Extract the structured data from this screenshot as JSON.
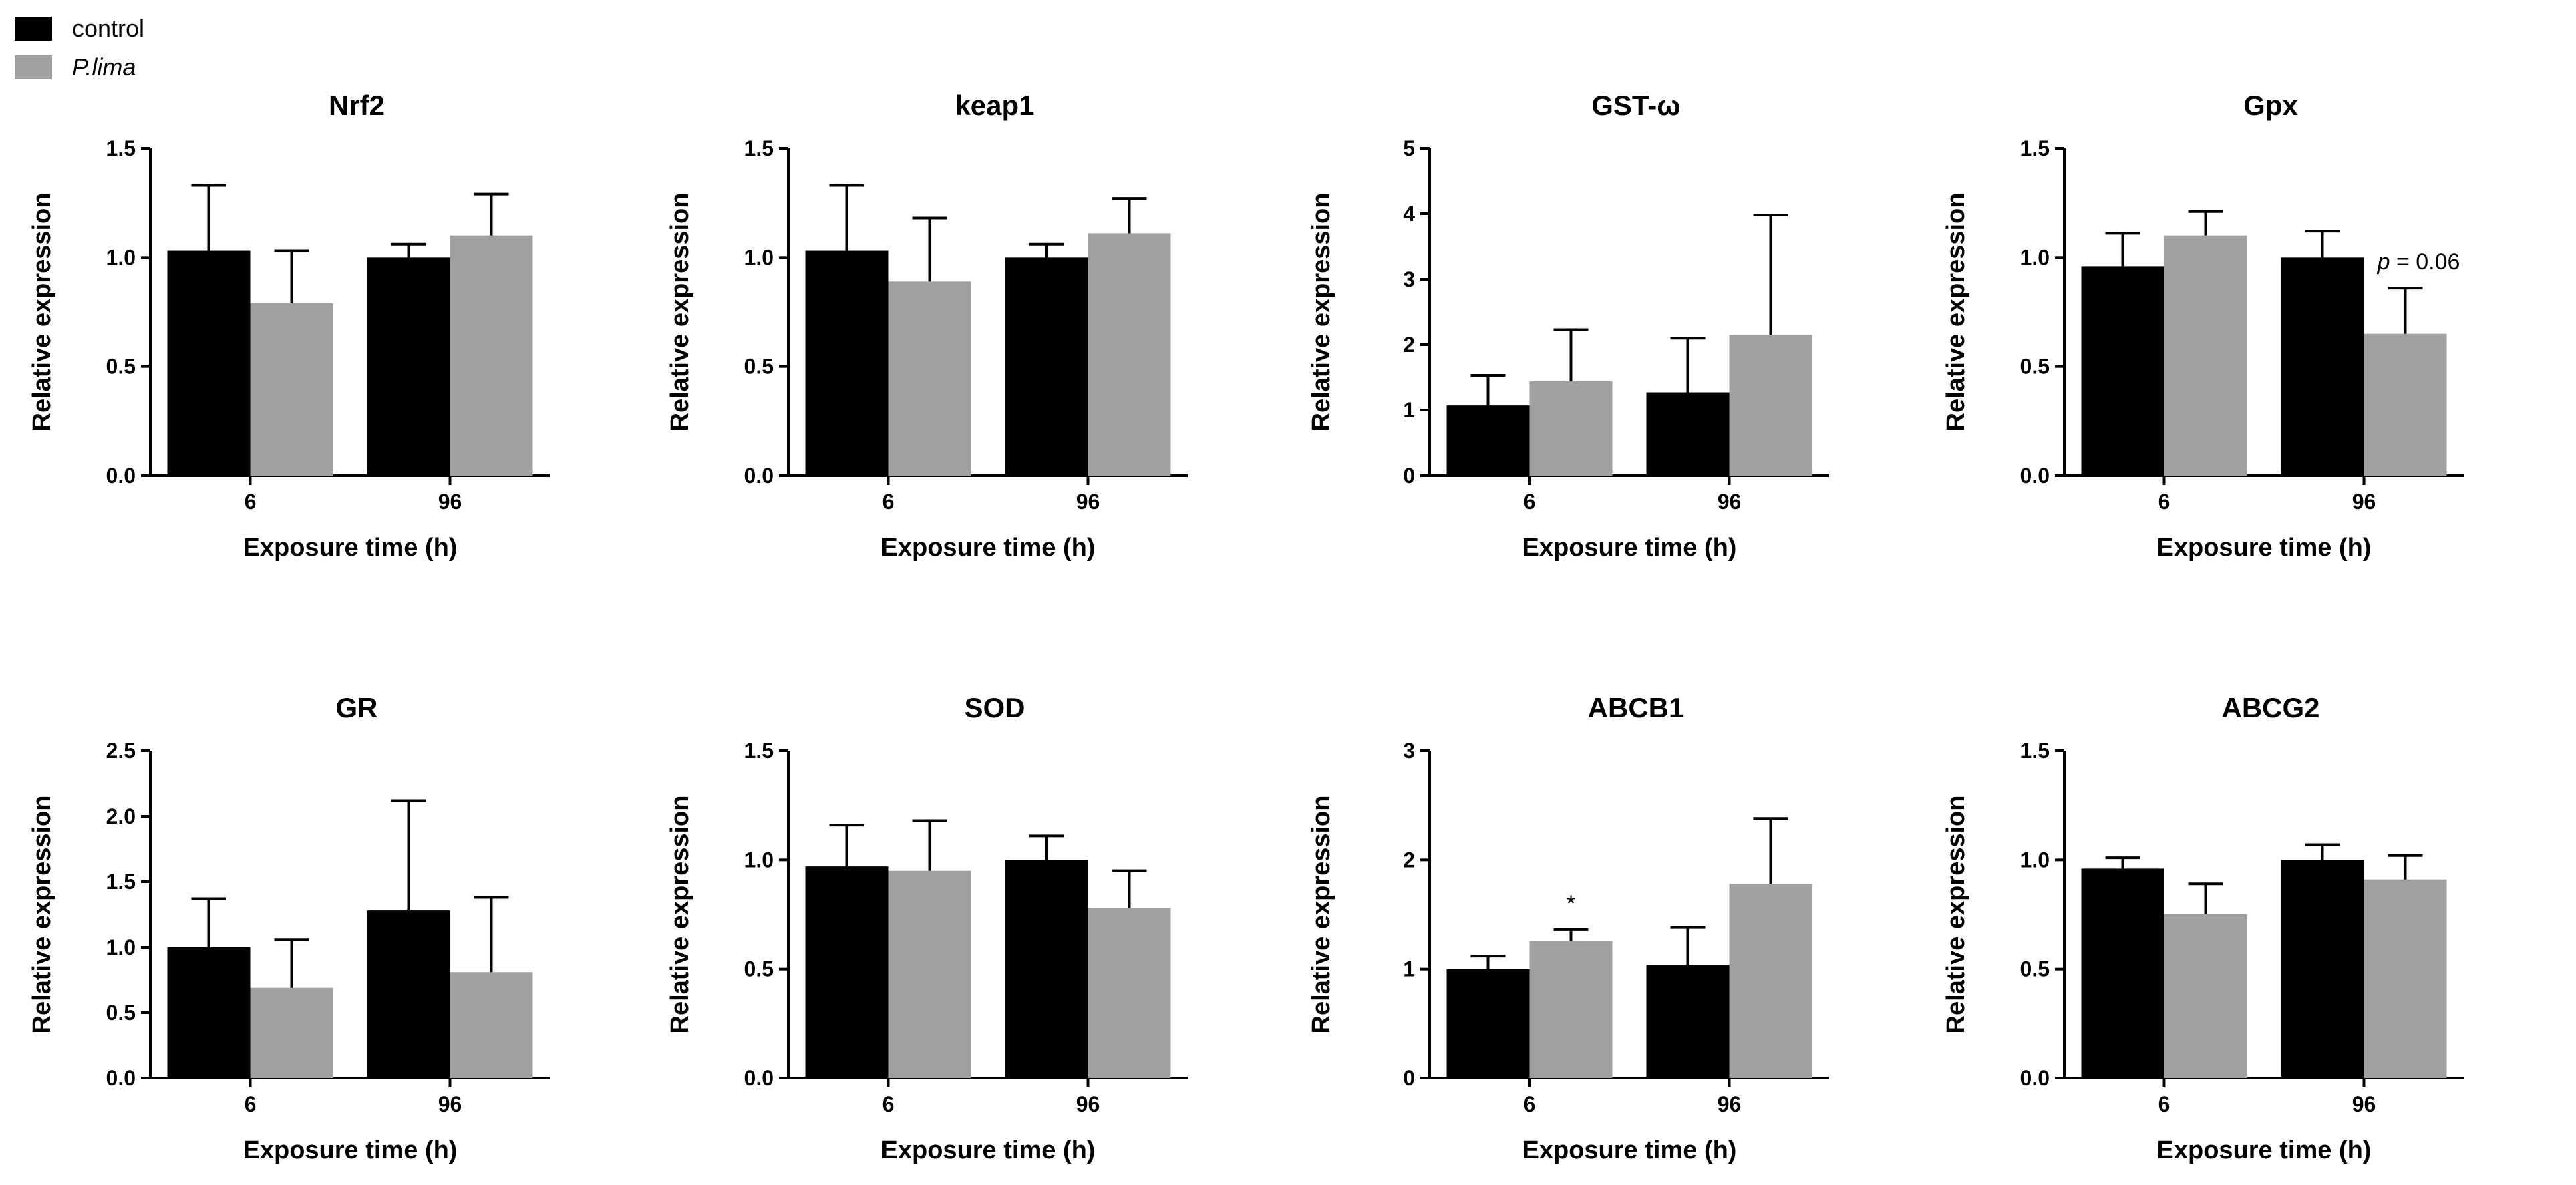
{
  "colors": {
    "control": "#000000",
    "treated": "#a0a0a3"
  },
  "legend": {
    "items": [
      {
        "label": "control",
        "color": "#000000",
        "italic": false
      },
      {
        "label": "P.lima",
        "color": "#a0a0a3",
        "italic": true
      }
    ]
  },
  "chart_data": [
    {
      "type": "bar",
      "title": "Nrf2",
      "xlabel": "Exposure time (h)",
      "ylabel": "Relative expression",
      "categories": [
        "6",
        "96"
      ],
      "ylim": [
        0,
        1.5
      ],
      "yticks": [
        "0.0",
        "0.5",
        "1.0",
        "1.5"
      ],
      "series": [
        {
          "name": "control",
          "values": [
            1.03,
            1.0
          ],
          "errors": [
            0.3,
            0.06
          ]
        },
        {
          "name": "P.lima",
          "values": [
            0.79,
            1.1
          ],
          "errors": [
            0.24,
            0.19
          ]
        }
      ],
      "annotations": []
    },
    {
      "type": "bar",
      "title": "keap1",
      "xlabel": "Exposure time (h)",
      "ylabel": "Relative expression",
      "categories": [
        "6",
        "96"
      ],
      "ylim": [
        0,
        1.5
      ],
      "yticks": [
        "0.0",
        "0.5",
        "1.0",
        "1.5"
      ],
      "series": [
        {
          "name": "control",
          "values": [
            1.03,
            1.0
          ],
          "errors": [
            0.3,
            0.06
          ]
        },
        {
          "name": "P.lima",
          "values": [
            0.89,
            1.11
          ],
          "errors": [
            0.29,
            0.16
          ]
        }
      ],
      "annotations": []
    },
    {
      "type": "bar",
      "title": "GST-ω",
      "xlabel": "Exposure time (h)",
      "ylabel": "Relative expression",
      "categories": [
        "6",
        "96"
      ],
      "ylim": [
        0,
        5
      ],
      "yticks": [
        "0",
        "1",
        "2",
        "3",
        "4",
        "5"
      ],
      "series": [
        {
          "name": "control",
          "values": [
            1.07,
            1.27
          ],
          "errors": [
            0.46,
            0.83
          ]
        },
        {
          "name": "P.lima",
          "values": [
            1.44,
            2.15
          ],
          "errors": [
            0.79,
            1.83
          ]
        }
      ],
      "annotations": []
    },
    {
      "type": "bar",
      "title": "Gpx",
      "xlabel": "Exposure time (h)",
      "ylabel": "Relative expression",
      "categories": [
        "6",
        "96"
      ],
      "ylim": [
        0,
        1.5
      ],
      "yticks": [
        "0.0",
        "0.5",
        "1.0",
        "1.5"
      ],
      "series": [
        {
          "name": "control",
          "values": [
            0.96,
            1.0
          ],
          "errors": [
            0.15,
            0.12
          ]
        },
        {
          "name": "P.lima",
          "values": [
            1.1,
            0.65
          ],
          "errors": [
            0.11,
            0.21
          ]
        }
      ],
      "annotations": [
        {
          "prefix": "p",
          "text": " = 0.06",
          "category": 1,
          "series": 1
        }
      ]
    },
    {
      "type": "bar",
      "title": "GR",
      "xlabel": "Exposure time (h)",
      "ylabel": "Relative expression",
      "categories": [
        "6",
        "96"
      ],
      "ylim": [
        0,
        2.5
      ],
      "yticks": [
        "0.0",
        "0.5",
        "1.0",
        "1.5",
        "2.0",
        "2.5"
      ],
      "series": [
        {
          "name": "control",
          "values": [
            1.0,
            1.28
          ],
          "errors": [
            0.37,
            0.84
          ]
        },
        {
          "name": "P.lima",
          "values": [
            0.69,
            0.81
          ],
          "errors": [
            0.37,
            0.57
          ]
        }
      ],
      "annotations": []
    },
    {
      "type": "bar",
      "title": "SOD",
      "xlabel": "Exposure time (h)",
      "ylabel": "Relative expression",
      "categories": [
        "6",
        "96"
      ],
      "ylim": [
        0,
        1.5
      ],
      "yticks": [
        "0.0",
        "0.5",
        "1.0",
        "1.5"
      ],
      "series": [
        {
          "name": "control",
          "values": [
            0.97,
            1.0
          ],
          "errors": [
            0.19,
            0.11
          ]
        },
        {
          "name": "P.lima",
          "values": [
            0.95,
            0.78
          ],
          "errors": [
            0.23,
            0.17
          ]
        }
      ],
      "annotations": []
    },
    {
      "type": "bar",
      "title": "ABCB1",
      "xlabel": "Exposure time (h)",
      "ylabel": "Relative expression",
      "categories": [
        "6",
        "96"
      ],
      "ylim": [
        0,
        3
      ],
      "yticks": [
        "0",
        "1",
        "2",
        "3"
      ],
      "series": [
        {
          "name": "control",
          "values": [
            1.0,
            1.04
          ],
          "errors": [
            0.12,
            0.34
          ]
        },
        {
          "name": "P.lima",
          "values": [
            1.26,
            1.78
          ],
          "errors": [
            0.1,
            0.6
          ]
        }
      ],
      "annotations": [
        {
          "prefix": "",
          "text": "*",
          "category": 0,
          "series": 1
        }
      ]
    },
    {
      "type": "bar",
      "title": "ABCG2",
      "xlabel": "Exposure time (h)",
      "ylabel": "Relative expression",
      "categories": [
        "6",
        "96"
      ],
      "ylim": [
        0,
        1.5
      ],
      "yticks": [
        "0.0",
        "0.5",
        "1.0",
        "1.5"
      ],
      "series": [
        {
          "name": "control",
          "values": [
            0.96,
            1.0
          ],
          "errors": [
            0.05,
            0.07
          ]
        },
        {
          "name": "P.lima",
          "values": [
            0.75,
            0.91
          ],
          "errors": [
            0.14,
            0.11
          ]
        }
      ],
      "annotations": []
    }
  ]
}
